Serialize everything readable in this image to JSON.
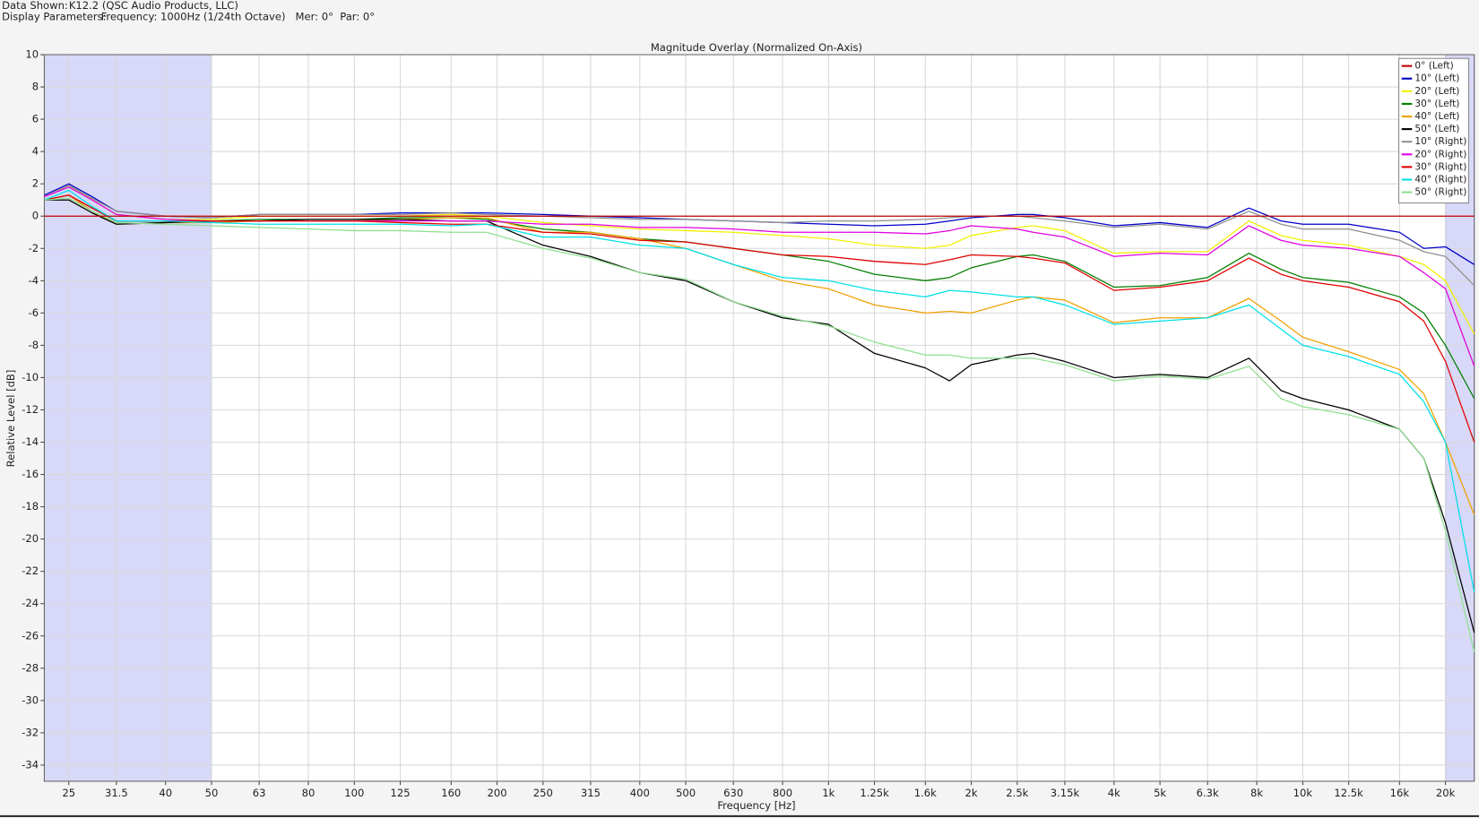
{
  "header": {
    "data_shown_label": "Data Shown:",
    "data_shown": "K12.2 (QSC Audio Products, LLC)",
    "display_label": "Display Parameters:",
    "display": "Frequency: 1000Hz (1/24th Octave)   Mer: 0°  Par: 0°"
  },
  "chart_data": {
    "type": "line",
    "title": "Magnitude Overlay (Normalized On-Axis)",
    "x_label": "Frequency [Hz]",
    "y_label": "Relative Level [dB]",
    "xscale": "log",
    "grid": true,
    "legend": "upper right",
    "xlim": [
      22.2,
      23000
    ],
    "ylim": [
      -35,
      10
    ],
    "xticks": [
      25,
      31.5,
      40,
      50,
      63,
      80,
      100,
      125,
      160,
      200,
      250,
      315,
      400,
      500,
      630,
      800,
      {
        "value": 1000,
        "label": "1k"
      },
      {
        "value": 1250,
        "label": "1.25k"
      },
      {
        "value": 1600,
        "label": "1.6k"
      },
      {
        "value": 2000,
        "label": "2k"
      },
      {
        "value": 2500,
        "label": "2.5k"
      },
      {
        "value": 3150,
        "label": "3.15k"
      },
      {
        "value": 4000,
        "label": "4k"
      },
      {
        "value": 5000,
        "label": "5k"
      },
      {
        "value": 6300,
        "label": "6.3k"
      },
      {
        "value": 8000,
        "label": "8k"
      },
      {
        "value": 10000,
        "label": "10k"
      },
      {
        "value": 12500,
        "label": "12.5k"
      },
      {
        "value": 16000,
        "label": "16k"
      },
      {
        "value": 20000,
        "label": "20k"
      }
    ],
    "yticks": [
      -34,
      -32,
      -30,
      -28,
      -26,
      -24,
      -22,
      -20,
      -18,
      -16,
      -14,
      -12,
      -10,
      -8,
      -6,
      -4,
      -2,
      0,
      2,
      4,
      6,
      8,
      10
    ],
    "shaded_x_ranges": [
      [
        22.2,
        50
      ],
      [
        20000,
        23000
      ]
    ],
    "shade_color": "#d8d8f8",
    "x": [
      22.2,
      25,
      28,
      31.5,
      40,
      50,
      63,
      80,
      100,
      125,
      160,
      190,
      250,
      315,
      400,
      500,
      630,
      800,
      1000,
      1250,
      1600,
      1800,
      2000,
      2500,
      2700,
      3150,
      4000,
      5000,
      6300,
      7700,
      9000,
      10000,
      12500,
      16000,
      18000,
      20000,
      23000
    ],
    "series": [
      {
        "name": "0° (Left)",
        "color": "#c00000",
        "values": [
          0,
          0,
          0,
          0,
          0,
          0,
          0,
          0,
          0,
          0,
          0,
          0,
          0,
          0,
          0,
          0,
          0,
          0,
          0,
          0,
          0,
          0,
          0,
          0,
          0,
          0,
          0,
          0,
          0,
          0,
          0,
          0,
          0,
          0,
          0,
          0,
          0
        ]
      },
      {
        "name": "10° (Left)",
        "color": "#0000c8",
        "values": [
          1.3,
          2.0,
          1.2,
          0.3,
          0.0,
          -0.1,
          0.1,
          0.1,
          0.1,
          0.2,
          0.2,
          0.2,
          0.1,
          0.0,
          -0.1,
          -0.2,
          -0.3,
          -0.4,
          -0.5,
          -0.6,
          -0.5,
          -0.3,
          -0.1,
          0.1,
          0.1,
          -0.1,
          -0.6,
          -0.4,
          -0.7,
          0.5,
          -0.3,
          -0.5,
          -0.5,
          -1.0,
          -2.0,
          -1.9,
          -3.0
        ]
      },
      {
        "name": "20° (Left)",
        "color": "#f0f000",
        "values": [
          1.2,
          1.9,
          1.0,
          0.1,
          -0.2,
          -0.2,
          0.0,
          0.0,
          0.0,
          0.0,
          0.1,
          0.0,
          -0.4,
          -0.6,
          -0.8,
          -0.9,
          -1.0,
          -1.2,
          -1.4,
          -1.8,
          -2.0,
          -1.8,
          -1.2,
          -0.7,
          -0.6,
          -0.9,
          -2.3,
          -2.2,
          -2.2,
          -0.3,
          -1.2,
          -1.5,
          -1.8,
          -2.5,
          -3.0,
          -4.0,
          -7.3
        ]
      },
      {
        "name": "30° (Left)",
        "color": "#008000",
        "values": [
          1.0,
          1.3,
          0.5,
          -0.3,
          -0.3,
          -0.3,
          -0.2,
          -0.2,
          -0.2,
          -0.1,
          -0.1,
          -0.2,
          -0.8,
          -1.0,
          -1.4,
          -1.6,
          -2.0,
          -2.4,
          -2.8,
          -3.6,
          -4.0,
          -3.8,
          -3.2,
          -2.5,
          -2.4,
          -2.8,
          -4.4,
          -4.3,
          -3.8,
          -2.3,
          -3.3,
          -3.8,
          -4.1,
          -5.0,
          -6.0,
          -8.0,
          -11.3
        ]
      },
      {
        "name": "40° (Left)",
        "color": "#f0a000",
        "values": [
          1.0,
          1.3,
          0.3,
          -0.5,
          -0.4,
          -0.4,
          -0.3,
          -0.3,
          -0.3,
          -0.2,
          -0.1,
          -0.1,
          -1.0,
          -1.0,
          -1.4,
          -2.0,
          -3.0,
          -4.0,
          -4.5,
          -5.5,
          -6.0,
          -5.9,
          -6.0,
          -5.2,
          -5.0,
          -5.2,
          -6.6,
          -6.3,
          -6.3,
          -5.1,
          -6.5,
          -7.5,
          -8.4,
          -9.5,
          -11,
          -14,
          -18.5
        ]
      },
      {
        "name": "50° (Left)",
        "color": "#000000",
        "values": [
          1.0,
          1.0,
          0.2,
          -0.5,
          -0.4,
          -0.3,
          -0.3,
          -0.2,
          -0.2,
          -0.2,
          -0.3,
          -0.3,
          -1.8,
          -2.5,
          -3.5,
          -4.0,
          -5.3,
          -6.3,
          -6.7,
          -8.5,
          -9.4,
          -10.2,
          -9.2,
          -8.6,
          -8.5,
          -9.0,
          -10.0,
          -9.8,
          -10.0,
          -8.8,
          -10.8,
          -11.3,
          -12.0,
          -13.2,
          -15.0,
          -19.0,
          -25.8
        ]
      },
      {
        "name": "10° (Right)",
        "color": "#909090",
        "values": [
          1.2,
          1.9,
          1.1,
          0.3,
          0.0,
          -0.1,
          0.1,
          0.1,
          0.1,
          0.1,
          0.2,
          0.1,
          0.0,
          -0.1,
          -0.2,
          -0.2,
          -0.3,
          -0.4,
          -0.3,
          -0.3,
          -0.2,
          -0.1,
          0.0,
          0.0,
          -0.1,
          -0.3,
          -0.7,
          -0.5,
          -0.8,
          0.3,
          -0.5,
          -0.8,
          -0.8,
          -1.5,
          -2.2,
          -2.5,
          -4.3
        ]
      },
      {
        "name": "20° (Right)",
        "color": "#e000e0",
        "values": [
          1.2,
          1.8,
          1.0,
          0.1,
          -0.2,
          -0.3,
          -0.3,
          -0.3,
          -0.3,
          -0.3,
          -0.3,
          -0.3,
          -0.5,
          -0.5,
          -0.7,
          -0.7,
          -0.8,
          -1.0,
          -1.0,
          -1.0,
          -1.1,
          -0.9,
          -0.6,
          -0.8,
          -1.0,
          -1.3,
          -2.5,
          -2.3,
          -2.4,
          -0.6,
          -1.5,
          -1.8,
          -2.0,
          -2.5,
          -3.5,
          -4.5,
          -9.3
        ]
      },
      {
        "name": "30° (Right)",
        "color": "#e00000",
        "values": [
          1.0,
          1.3,
          0.5,
          -0.3,
          -0.3,
          -0.3,
          -0.3,
          -0.3,
          -0.3,
          -0.4,
          -0.5,
          -0.5,
          -1.0,
          -1.1,
          -1.5,
          -1.6,
          -2.0,
          -2.4,
          -2.5,
          -2.8,
          -3.0,
          -2.7,
          -2.4,
          -2.5,
          -2.6,
          -2.9,
          -4.6,
          -4.4,
          -4.0,
          -2.6,
          -3.6,
          -4.0,
          -4.4,
          -5.3,
          -6.5,
          -9.0,
          -14.0
        ]
      },
      {
        "name": "40° (Right)",
        "color": "#00e0e8",
        "values": [
          1.0,
          1.6,
          0.6,
          -0.3,
          -0.3,
          -0.4,
          -0.5,
          -0.5,
          -0.5,
          -0.5,
          -0.6,
          -0.5,
          -1.3,
          -1.3,
          -1.8,
          -2.0,
          -3.0,
          -3.8,
          -4.0,
          -4.6,
          -5.0,
          -4.6,
          -4.7,
          -5.0,
          -5.0,
          -5.5,
          -6.7,
          -6.5,
          -6.3,
          -5.5,
          -7.0,
          -8.0,
          -8.7,
          -9.8,
          -11.5,
          -14,
          -23.3
        ]
      },
      {
        "name": "50° (Right)",
        "color": "#90e090",
        "values": [
          1.0,
          1.1,
          0.3,
          -0.4,
          -0.5,
          -0.6,
          -0.7,
          -0.8,
          -0.9,
          -0.9,
          -1.0,
          -1.0,
          -2.0,
          -2.6,
          -3.5,
          -3.9,
          -5.3,
          -6.2,
          -6.8,
          -7.8,
          -8.6,
          -8.6,
          -8.8,
          -8.8,
          -8.8,
          -9.2,
          -10.2,
          -9.9,
          -10.1,
          -9.3,
          -11.3,
          -11.8,
          -12.3,
          -13.2,
          -15.0,
          -19.5,
          -27.0
        ]
      }
    ]
  }
}
